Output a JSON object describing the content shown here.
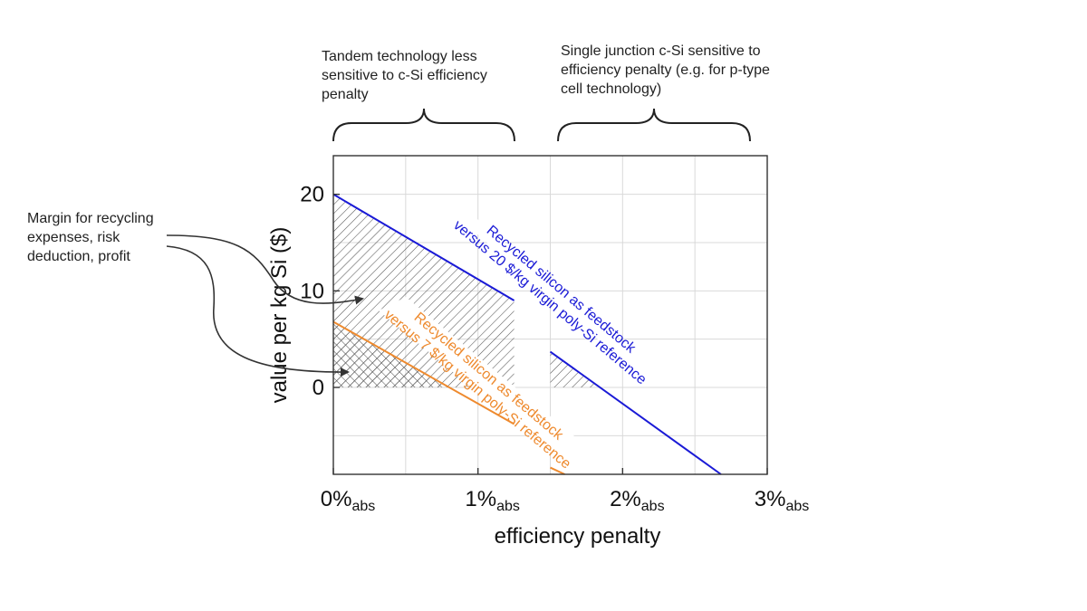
{
  "annotations": {
    "tandem": "Tandem technology less\nsensitive to c-Si efficiency\npenalty",
    "single_junction": "Single junction c-Si sensitive to\nefficiency penalty (e.g. for p-type\ncell technology)",
    "margin": "Margin for recycling\nexpenses, risk\ndeduction, profit"
  },
  "colors": {
    "blue": "#1a1ad6",
    "orange": "#ee8a2e",
    "hatch": "#555555",
    "grid": "#d9d9d9",
    "axis": "#333333"
  },
  "chart_data": {
    "type": "line",
    "xlabel": "efficiency penalty",
    "ylabel": "value per kg Si ($)",
    "xlim": [
      0,
      3
    ],
    "ylim": [
      -9,
      24
    ],
    "x_ticks": [
      {
        "value": 0,
        "main": "0%",
        "sub": "abs"
      },
      {
        "value": 1,
        "main": "1%",
        "sub": "abs"
      },
      {
        "value": 2,
        "main": "2%",
        "sub": "abs"
      },
      {
        "value": 3,
        "main": "3%",
        "sub": "abs"
      }
    ],
    "y_ticks": [
      0,
      10,
      20
    ],
    "grid": true,
    "series": [
      {
        "name": "Recycled silicon as feedstock\nversus 20 $/kg virgin poly-Si reference",
        "color_key": "blue",
        "segments": [
          [
            [
              0,
              20
            ],
            [
              1.25,
              9
            ]
          ],
          [
            [
              1.5,
              3.7
            ],
            [
              2.68,
              -9
            ]
          ]
        ]
      },
      {
        "name": "Recycled silicon as feedstock\nversus 7 $/kg virgin poly-Si reference",
        "color_key": "orange",
        "segments": [
          [
            [
              0,
              6.8
            ],
            [
              1.25,
              -3.8
            ]
          ],
          [
            [
              1.5,
              -8.3
            ],
            [
              1.6,
              -9
            ]
          ]
        ]
      }
    ],
    "hatched_regions": [
      {
        "points": [
          [
            0,
            0
          ],
          [
            0,
            20
          ],
          [
            1.25,
            9
          ],
          [
            1.25,
            0
          ]
        ],
        "pattern": "single"
      },
      {
        "points": [
          [
            1.5,
            0
          ],
          [
            1.5,
            3.7
          ],
          [
            1.84,
            0
          ]
        ],
        "pattern": "single"
      },
      {
        "points": [
          [
            0,
            0
          ],
          [
            0,
            6.8
          ],
          [
            0.8,
            0
          ]
        ],
        "pattern": "cross"
      }
    ]
  }
}
